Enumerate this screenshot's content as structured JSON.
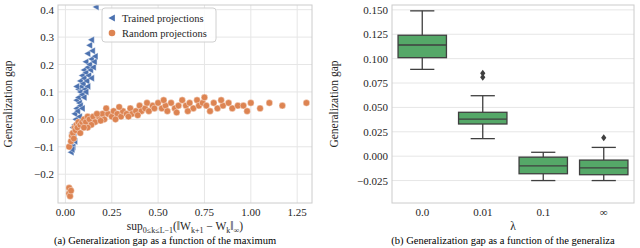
{
  "chart_data": [
    {
      "type": "scatter",
      "x_label": [
        "sup",
        "0≤k≤L−1",
        "(‖W",
        "k+1",
        " − W",
        "k",
        "‖",
        "∞",
        ")"
      ],
      "y_label": "Generalization gap",
      "caption": "(a) Generalization gap as a function of the maximum",
      "xlim": [
        -0.04,
        1.33
      ],
      "ylim": [
        -0.305,
        0.417
      ],
      "xticks": [
        {
          "value": 0,
          "label": "0.00"
        },
        {
          "value": 0.25,
          "label": "0.25"
        },
        {
          "value": 0.5,
          "label": "0.50"
        },
        {
          "value": 0.75,
          "label": "0.75"
        },
        {
          "value": 1,
          "label": "1.00"
        },
        {
          "value": 1.25,
          "label": "1.25"
        }
      ],
      "yticks": [
        {
          "value": -0.2,
          "label": "−0.2"
        },
        {
          "value": -0.1,
          "label": "−0.1"
        },
        {
          "value": 0,
          "label": "0.0"
        },
        {
          "value": 0.1,
          "label": "0.1"
        },
        {
          "value": 0.2,
          "label": "0.2"
        },
        {
          "value": 0.3,
          "label": "0.3"
        },
        {
          "value": 0.4,
          "label": "0.4"
        }
      ],
      "grid": true,
      "legend": "upper left",
      "series": [
        {
          "name": "Trained projections",
          "color": "#4c72b0",
          "marker": "triangle-left",
          "x": [
            0.03,
            0.03,
            0.035,
            0.04,
            0.04,
            0.045,
            0.05,
            0.05,
            0.055,
            0.06,
            0.06,
            0.065,
            0.07,
            0.07,
            0.075,
            0.08,
            0.08,
            0.085,
            0.09,
            0.09,
            0.095,
            0.1,
            0.1,
            0.105,
            0.11,
            0.11,
            0.115,
            0.12,
            0.12,
            0.125,
            0.13,
            0.13,
            0.135,
            0.14,
            0.14,
            0.145,
            0.15,
            0.155,
            0.06,
            0.08,
            0.1,
            0.12,
            0.14,
            0.16,
            0.165,
            0.05,
            0.035,
            0.075,
            0.09,
            0.11
          ],
          "y": [
            -0.12,
            -0.09,
            -0.05,
            -0.03,
            -0.1,
            -0.06,
            -0.02,
            0.02,
            0.0,
            0.04,
            0.07,
            0.03,
            0.08,
            0.11,
            0.06,
            0.1,
            0.14,
            0.12,
            0.09,
            0.16,
            0.13,
            0.15,
            0.18,
            0.11,
            0.17,
            0.21,
            0.14,
            0.19,
            0.24,
            0.16,
            0.2,
            0.27,
            0.18,
            0.22,
            0.15,
            0.25,
            0.19,
            0.21,
            0.12,
            0.05,
            0.08,
            0.12,
            0.29,
            0.23,
            0.41,
            -0.08,
            -0.11,
            0.01,
            0.04,
            0.1
          ]
        },
        {
          "name": "Random projections",
          "color": "#dd8452",
          "marker": "circle",
          "x": [
            0.02,
            0.02,
            0.025,
            0.03,
            0.02,
            0.03,
            0.035,
            0.04,
            0.045,
            0.05,
            0.055,
            0.06,
            0.065,
            0.07,
            0.08,
            0.09,
            0.1,
            0.11,
            0.12,
            0.13,
            0.15,
            0.16,
            0.18,
            0.2,
            0.21,
            0.23,
            0.25,
            0.26,
            0.28,
            0.3,
            0.31,
            0.33,
            0.35,
            0.36,
            0.38,
            0.4,
            0.41,
            0.43,
            0.45,
            0.47,
            0.48,
            0.5,
            0.52,
            0.54,
            0.55,
            0.57,
            0.59,
            0.61,
            0.63,
            0.65,
            0.67,
            0.69,
            0.71,
            0.72,
            0.74,
            0.76,
            0.78,
            0.8,
            0.82,
            0.85,
            0.88,
            0.9,
            0.93,
            0.96,
            1.0,
            1.05,
            1.1,
            1.17,
            1.3,
            0.22,
            0.27,
            0.34,
            0.44,
            0.53,
            0.66,
            0.75,
            0.14,
            0.17,
            0.19,
            0.29,
            0.39,
            0.6,
            0.84,
            0.98,
            0.12,
            0.08,
            0.1
          ],
          "y": [
            -0.25,
            -0.27,
            -0.28,
            -0.26,
            -0.1,
            -0.08,
            -0.06,
            -0.05,
            -0.07,
            -0.03,
            -0.04,
            -0.02,
            -0.03,
            -0.01,
            -0.02,
            -0.01,
            0.0,
            -0.01,
            0.01,
            0.0,
            0.01,
            -0.01,
            0.01,
            0.02,
            0.0,
            0.02,
            0.01,
            0.03,
            0.02,
            0.01,
            0.03,
            0.02,
            0.04,
            0.02,
            0.03,
            0.05,
            0.03,
            0.04,
            0.03,
            0.05,
            0.04,
            0.06,
            0.04,
            0.05,
            0.03,
            0.06,
            0.04,
            0.05,
            0.07,
            0.05,
            0.06,
            0.04,
            0.07,
            0.05,
            0.06,
            0.05,
            0.03,
            0.06,
            0.04,
            0.05,
            0.06,
            0.04,
            0.05,
            0.05,
            0.06,
            0.04,
            0.06,
            0.05,
            0.06,
            0.04,
            0.0,
            0.01,
            0.06,
            0.07,
            0.03,
            0.08,
            -0.02,
            0.02,
            -0.005,
            0.045,
            0.015,
            0.025,
            0.07,
            0.03,
            -0.03,
            -0.05,
            -0.03
          ]
        }
      ]
    },
    {
      "type": "box",
      "x_label": "λ",
      "y_label": "Generalization gap",
      "caption": "(b) Generalization gap as a function of the generaliza",
      "categories": [
        "0.0",
        "0.01",
        "0.1",
        "∞"
      ],
      "color": "#55a868",
      "ylim": [
        -0.048,
        0.155
      ],
      "yticks": [
        {
          "value": -0.025,
          "label": "−0.025"
        },
        {
          "value": 0,
          "label": "0.000"
        },
        {
          "value": 0.025,
          "label": "0.025"
        },
        {
          "value": 0.05,
          "label": "0.050"
        },
        {
          "value": 0.075,
          "label": "0.075"
        },
        {
          "value": 0.1,
          "label": "0.100"
        },
        {
          "value": 0.125,
          "label": "0.125"
        },
        {
          "value": 0.15,
          "label": "0.150"
        }
      ],
      "grid": true,
      "boxes": [
        {
          "whisker_low": 0.089,
          "q1": 0.101,
          "median": 0.114,
          "q3": 0.124,
          "whisker_high": 0.149,
          "outliers": []
        },
        {
          "whisker_low": 0.018,
          "q1": 0.033,
          "median": 0.038,
          "q3": 0.045,
          "whisker_high": 0.062,
          "outliers": [
            0.081,
            0.085
          ]
        },
        {
          "whisker_low": -0.025,
          "q1": -0.018,
          "median": -0.01,
          "q3": -0.001,
          "whisker_high": 0.004,
          "outliers": []
        },
        {
          "whisker_low": -0.025,
          "q1": -0.019,
          "median": -0.012,
          "q3": -0.004,
          "whisker_high": 0.009,
          "outliers": [
            0.019
          ]
        }
      ]
    }
  ]
}
